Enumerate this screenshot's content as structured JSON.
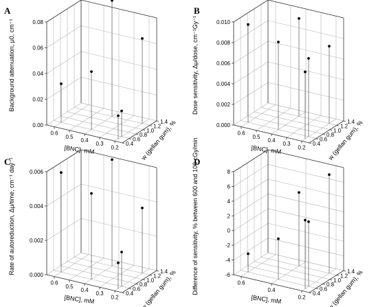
{
  "chart_data": [
    {
      "panel_label": "A",
      "type": "scatter",
      "ylabel": "Background attenuation, μ0, cm⁻¹",
      "xlabel": "[BNC], mM",
      "zlabel": "w (gellan gum), %",
      "x_ticks": [
        "0.6",
        "0.5",
        "0.4",
        "0.3",
        "0.2"
      ],
      "z_ticks": [
        "0.4",
        "0.6",
        "0.8",
        "1.0",
        "1.2",
        "1.4"
      ],
      "y_ticks": [
        "0.00",
        "0.02",
        "0.04",
        "0.06",
        "0.08"
      ],
      "xlim": [
        0.15,
        0.65
      ],
      "zlim": [
        0.4,
        1.4
      ],
      "ylim": [
        0,
        0.08
      ],
      "points": [
        {
          "x": 0.6,
          "z": 0.6,
          "y": 0.03
        },
        {
          "x": 0.4,
          "z": 0.6,
          "y": 0.045
        },
        {
          "x": 0.4,
          "z": 1.2,
          "y": 0.09
        },
        {
          "x": 0.2,
          "z": 0.6,
          "y": 0.02
        },
        {
          "x": 0.2,
          "z": 0.5,
          "y": 0.018
        },
        {
          "x": 0.2,
          "z": 1.2,
          "y": 0.066
        }
      ]
    },
    {
      "panel_label": "B",
      "type": "scatter",
      "ylabel": "Dose sensitivity, Δμ/dose, cm⁻¹Gy⁻¹",
      "xlabel": "[BNC], mM",
      "zlabel": "w (gellan gum), %",
      "x_ticks": [
        "0.6",
        "0.5",
        "0.4",
        "0.3",
        "0.2"
      ],
      "z_ticks": [
        "0.4",
        "0.6",
        "0.8",
        "1.0",
        "1.2",
        "1.4"
      ],
      "y_ticks": [
        "0.000",
        "0.002",
        "0.004",
        "0.006",
        "0.008",
        "0.010"
      ],
      "xlim": [
        0.15,
        0.65
      ],
      "zlim": [
        0.4,
        1.4
      ],
      "ylim": [
        0,
        0.01
      ],
      "points": [
        {
          "x": 0.6,
          "z": 0.6,
          "y": 0.0095
        },
        {
          "x": 0.4,
          "z": 0.6,
          "y": 0.0085
        },
        {
          "x": 0.4,
          "z": 1.2,
          "y": 0.0095
        },
        {
          "x": 0.2,
          "z": 0.6,
          "y": 0.0076
        },
        {
          "x": 0.2,
          "z": 0.5,
          "y": 0.0065
        },
        {
          "x": 0.2,
          "z": 1.2,
          "y": 0.0075
        }
      ]
    },
    {
      "panel_label": "C",
      "type": "scatter",
      "ylabel": "Rate of autoreduction, Δμ/time, cm⁻¹ day⁻¹",
      "xlabel": "[BNC], mM",
      "zlabel": "w (gellan gum), %",
      "x_ticks": [
        "0.6",
        "0.5",
        "0.4",
        "0.3",
        "0.2"
      ],
      "z_ticks": [
        "0.4",
        "0.6",
        "0.8",
        "1.0",
        "1.2",
        "1.4"
      ],
      "y_ticks": [
        "0.000",
        "0.002",
        "0.004",
        "0.006"
      ],
      "xlim": [
        0.15,
        0.65
      ],
      "zlim": [
        0.4,
        1.4
      ],
      "ylim": [
        0,
        0.006
      ],
      "points": [
        {
          "x": 0.6,
          "z": 0.6,
          "y": 0.0058
        },
        {
          "x": 0.4,
          "z": 0.6,
          "y": 0.005
        },
        {
          "x": 0.4,
          "z": 1.2,
          "y": 0.0062
        },
        {
          "x": 0.2,
          "z": 0.6,
          "y": 0.002
        },
        {
          "x": 0.2,
          "z": 0.5,
          "y": 0.0015
        },
        {
          "x": 0.2,
          "z": 1.2,
          "y": 0.0038
        }
      ]
    },
    {
      "panel_label": "D",
      "type": "scatter",
      "ylabel": "Difference of sensitivity, % between 600 and 100 cGy/min",
      "xlabel": "[BNC], mM",
      "zlabel": "w (gellan gum), %",
      "x_ticks": [
        "0.6",
        "0.4",
        "0.2"
      ],
      "z_ticks": [
        "0.4",
        "0.6",
        "0.8",
        "1.0",
        "1.2",
        "1.4"
      ],
      "y_ticks": [
        "-6",
        "-4",
        "-2",
        "0",
        "2",
        "4",
        "6",
        "8"
      ],
      "xlim": [
        0.15,
        0.65
      ],
      "zlim": [
        0.4,
        1.4
      ],
      "ylim": [
        -6,
        8
      ],
      "points": [
        {
          "x": 0.6,
          "z": 0.6,
          "y": -3.5
        },
        {
          "x": 0.4,
          "z": 0.6,
          "y": -0.5
        },
        {
          "x": 0.4,
          "z": 1.2,
          "y": 4.0
        },
        {
          "x": 0.2,
          "z": 0.6,
          "y": 2.8
        },
        {
          "x": 0.2,
          "z": 0.5,
          "y": 3.3
        },
        {
          "x": 0.2,
          "z": 1.2,
          "y": 7.4
        }
      ]
    }
  ]
}
